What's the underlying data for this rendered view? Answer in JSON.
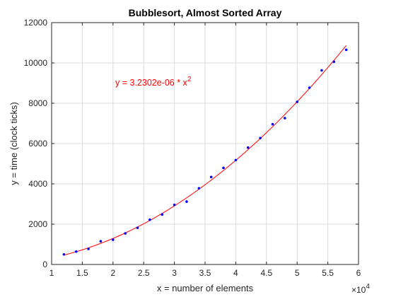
{
  "chart_data": {
    "type": "scatter",
    "title": "Bubblesort, Almost Sorted Array",
    "xlabel": "x = number of elements",
    "ylabel": "y = time (clock ticks)",
    "xlim": [
      10000,
      60000
    ],
    "ylim": [
      0,
      12000
    ],
    "x_ticks": [
      10000,
      15000,
      20000,
      25000,
      30000,
      35000,
      40000,
      45000,
      50000,
      55000,
      60000
    ],
    "x_tick_labels": [
      "1",
      "1.5",
      "2",
      "2.5",
      "3",
      "3.5",
      "4",
      "4.5",
      "5",
      "5.5",
      "6"
    ],
    "x_exponent_base": "×10",
    "x_exponent_power": "4",
    "y_ticks": [
      0,
      2000,
      4000,
      6000,
      8000,
      10000,
      12000
    ],
    "y_tick_labels": [
      "0",
      "2000",
      "4000",
      "6000",
      "8000",
      "10000",
      "12000"
    ],
    "grid": true,
    "series": [
      {
        "marker": "dot",
        "color": "#0000ff",
        "x": [
          12000,
          14000,
          16000,
          18000,
          20000,
          22000,
          24000,
          26000,
          28000,
          30000,
          32000,
          34000,
          36000,
          38000,
          40000,
          42000,
          44000,
          46000,
          48000,
          50000,
          52000,
          54000,
          56000,
          58000
        ],
        "y": [
          500,
          640,
          770,
          1150,
          1230,
          1540,
          1820,
          2220,
          2480,
          2960,
          3120,
          3780,
          4340,
          4790,
          5180,
          5800,
          6270,
          6960,
          7260,
          8070,
          8770,
          9630,
          10060,
          10650
        ]
      }
    ],
    "fit": {
      "color": "#ff0000",
      "coefficient": 3.2302e-06,
      "exponent": 2,
      "x_range": [
        12000,
        58000
      ],
      "label_main": "y = 3.2302e-06 * x",
      "label_sup": "2"
    }
  }
}
